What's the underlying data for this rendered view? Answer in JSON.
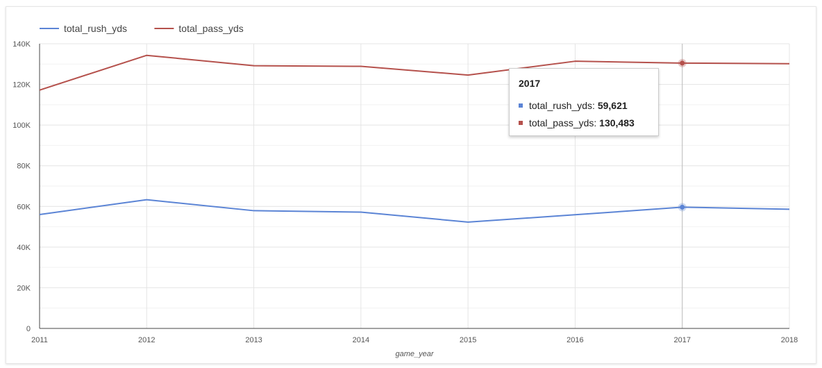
{
  "chart_data": {
    "type": "line",
    "x": [
      2011,
      2012,
      2013,
      2014,
      2015,
      2016,
      2017,
      2018
    ],
    "xlabel": "game_year",
    "ylabel": "",
    "ylim": [
      0,
      140000
    ],
    "yticks": [
      "0",
      "20K",
      "40K",
      "60K",
      "80K",
      "100K",
      "120K",
      "140K"
    ],
    "grid": true,
    "legend_position": "top-left",
    "series": [
      {
        "name": "total_rush_yds",
        "color": "#5b84d5",
        "values": [
          56000,
          63300,
          57900,
          57200,
          52300,
          55900,
          59621,
          58600
        ]
      },
      {
        "name": "total_pass_yds",
        "color": "#b5514c",
        "values": [
          117200,
          134300,
          129200,
          128900,
          124600,
          131400,
          130483,
          130200
        ]
      }
    ],
    "tooltip": {
      "title": "2017",
      "rows": [
        {
          "label": "total_rush_yds: ",
          "value": "59,621",
          "color": "#5b84d5"
        },
        {
          "label": "total_pass_yds: ",
          "value": "130,483",
          "color": "#b5514c"
        }
      ]
    }
  }
}
